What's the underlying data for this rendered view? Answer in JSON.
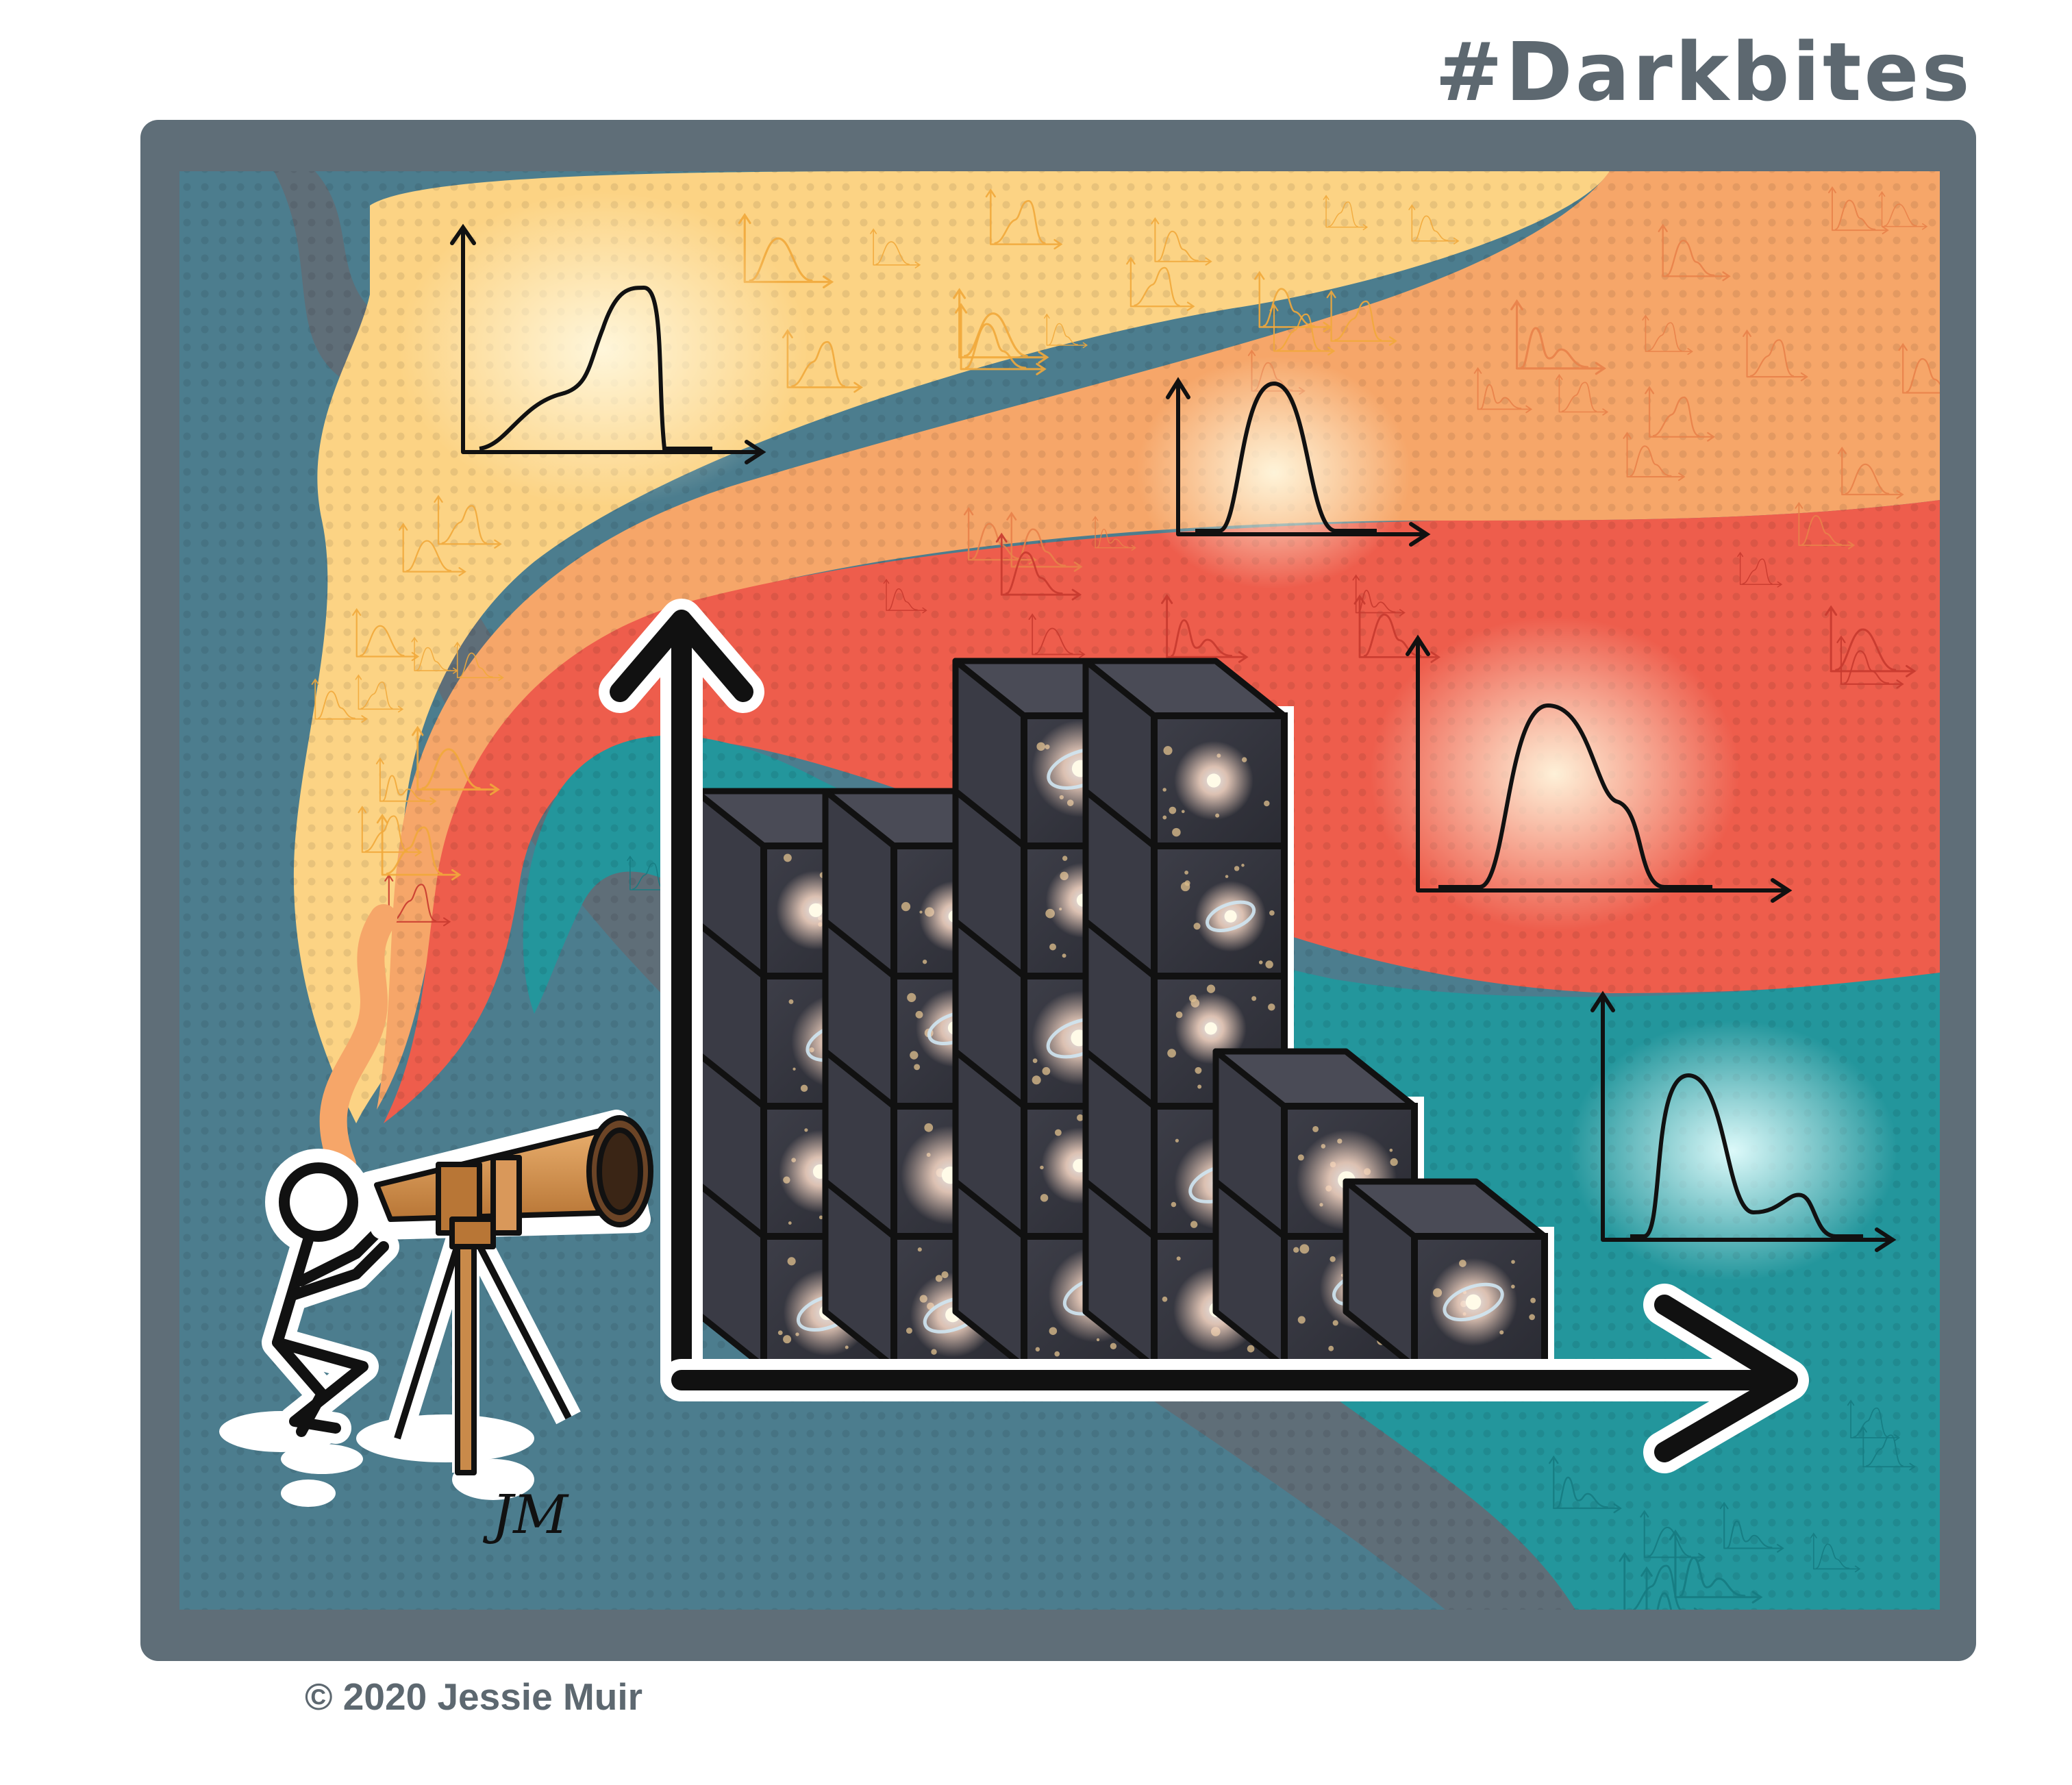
{
  "hashtag": "#Darkbites",
  "copyright": "© 2020 Jessie Muir",
  "signature": "JM",
  "colors": {
    "frame": "#5f6e78",
    "background": "#4c7d8e",
    "band_yellow": "#fcd384",
    "band_orange": "#f6a669",
    "band_red": "#ee5d4c",
    "band_teal": "#23969c",
    "telescope": "#c98a4a",
    "cube": "#33343c",
    "text": "#5d6870"
  },
  "icons": {
    "astronomer": "stick-figure-icon",
    "telescope": "telescope-icon",
    "histogram": "galaxy-cube-histogram-icon",
    "plot": "distribution-curve-icon",
    "galaxy": "spiral-galaxy-icon"
  }
}
